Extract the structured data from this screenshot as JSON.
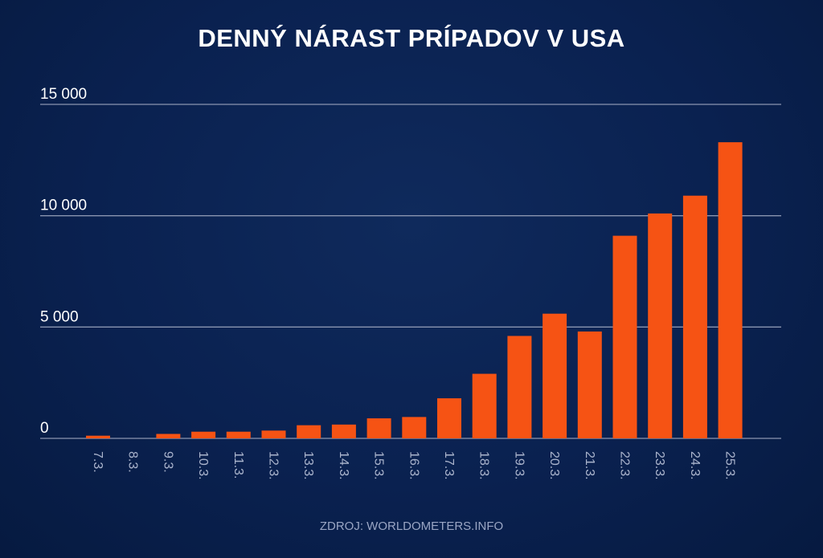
{
  "title": "DENNÝ NÁRAST PRÍPADOV V USA",
  "source": "ZDROJ: WORLDOMETERS.INFO",
  "colors": {
    "bar": "#f65314",
    "grid": "#8a95b0",
    "background": "#0a2150"
  },
  "chart_data": {
    "type": "bar",
    "title": "DENNÝ NÁRAST PRÍPADOV V USA",
    "xlabel": "",
    "ylabel": "",
    "ylim": [
      0,
      15000
    ],
    "yticks": [
      0,
      5000,
      10000,
      15000
    ],
    "ytick_labels": [
      "0",
      "5 000",
      "10 000",
      "15 000"
    ],
    "grid": true,
    "categories": [
      "7.3.",
      "8.3.",
      "9.3.",
      "10.3.",
      "11.3.",
      "12.3.",
      "13.3.",
      "14.3.",
      "15.3.",
      "16.3.",
      "17.3.",
      "18.3.",
      "19.3.",
      "20.3.",
      "21.3.",
      "22.3.",
      "23.3.",
      "24.3.",
      "25.3."
    ],
    "values": [
      120,
      0,
      200,
      300,
      300,
      350,
      590,
      620,
      900,
      960,
      1800,
      2900,
      4600,
      5600,
      4800,
      9100,
      10100,
      10900,
      13300
    ]
  }
}
